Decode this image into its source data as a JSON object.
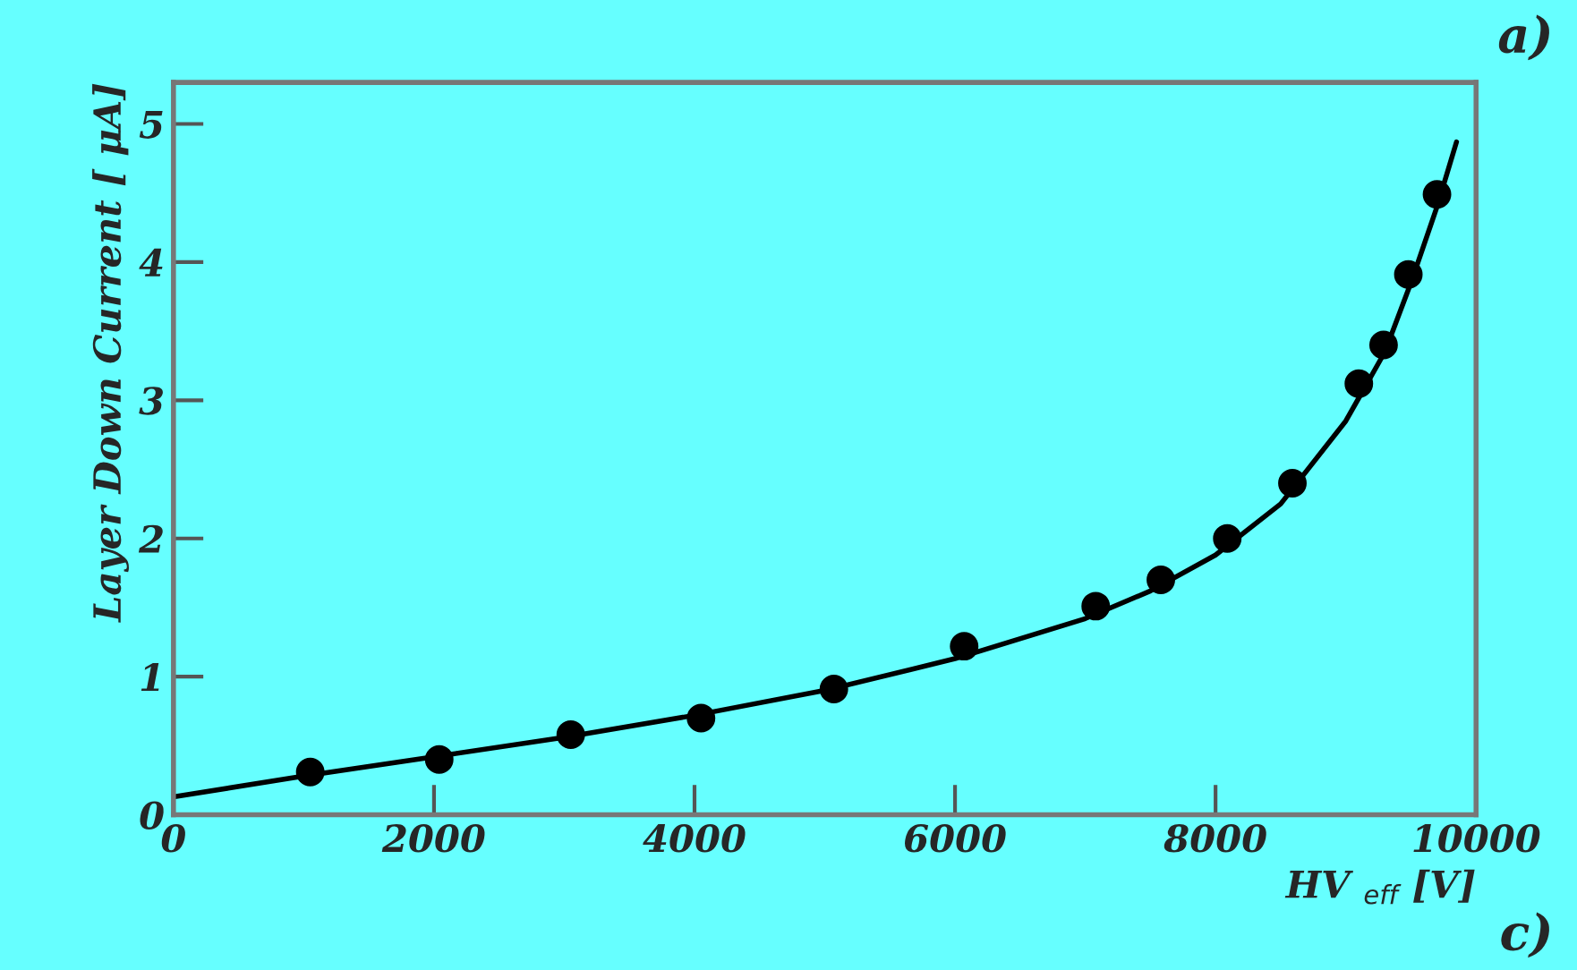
{
  "chart_data": {
    "type": "scatter",
    "xlabel": "HV $_{eff}$ [V]",
    "ylabel": "Layer Down Current [ μA]",
    "annotations": [
      "a)",
      "c)"
    ],
    "series": [
      {
        "color": "#000000",
        "marker": "circle",
        "x": [
          1050,
          2040,
          3050,
          4050,
          5070,
          6070,
          7080,
          7580,
          8090,
          8590,
          9100,
          9290,
          9480,
          9700
        ],
        "values": [
          0.31,
          0.4,
          0.58,
          0.7,
          0.91,
          1.22,
          1.51,
          1.7,
          2.0,
          2.4,
          3.12,
          3.4,
          3.91,
          4.49
        ]
      },
      {
        "type": "line",
        "color": "#000000",
        "marker": "none",
        "line_style": "solid",
        "x": [
          0,
          1000,
          2000,
          3000,
          4000,
          5000,
          6000,
          7000,
          7500,
          8000,
          8500,
          9000,
          9300,
          9500,
          9700,
          9850
        ],
        "values": [
          0.13,
          0.28,
          0.42,
          0.56,
          0.72,
          0.9,
          1.13,
          1.42,
          1.62,
          1.88,
          2.25,
          2.85,
          3.35,
          3.85,
          4.4,
          4.87
        ]
      }
    ],
    "xlim": [
      0,
      10000
    ],
    "ylim": [
      0,
      5.3
    ],
    "xticks": [
      0,
      2000,
      4000,
      6000,
      8000,
      10000
    ],
    "yticks": [
      0,
      1,
      2,
      3,
      4,
      5
    ],
    "grid": false,
    "legend": false
  }
}
